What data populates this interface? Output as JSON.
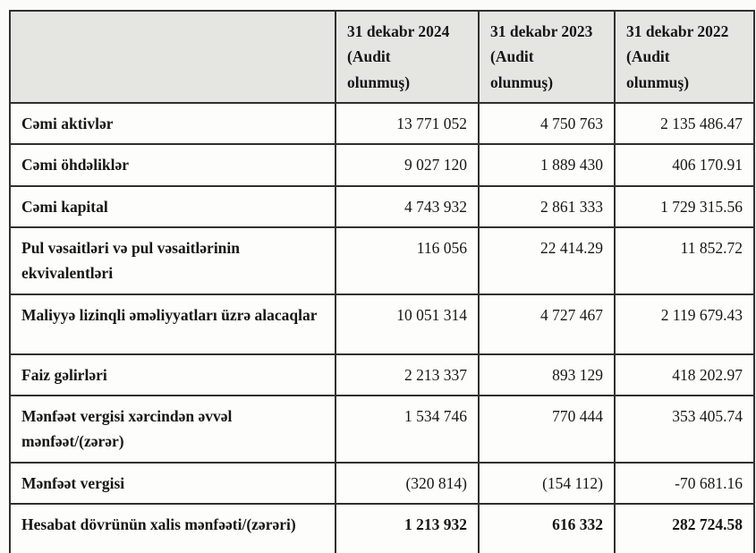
{
  "table": {
    "headers": [
      {
        "lines": [
          "31 dekabr 2024",
          "(Audit",
          "olunmuş)"
        ]
      },
      {
        "lines": [
          "31 dekabr 2023",
          "(Audit",
          "olunmuş)"
        ]
      },
      {
        "lines": [
          "31 dekabr 2022",
          "(Audit",
          "olunmuş)"
        ]
      }
    ],
    "rows": [
      {
        "label": "Cəmi aktivlər",
        "values": [
          "13 771 052",
          "4 750 763",
          "2 135 486.47"
        ]
      },
      {
        "label": "Cəmi öhdəliklər",
        "values": [
          "9 027 120",
          "1 889 430",
          "406 170.91"
        ]
      },
      {
        "label": "Cəmi kapital",
        "values": [
          "4 743 932",
          "2 861 333",
          "1 729 315.56"
        ]
      },
      {
        "label": "Pul vəsaitləri və pul vəsaitlərinin ekvivalentləri",
        "values": [
          "116 056",
          "22 414.29",
          "11 852.72"
        ]
      },
      {
        "label": "Maliyyə lizinqli əməliyyatları üzrə alacaqlar",
        "values": [
          "10 051 314",
          "4 727 467",
          "2 119 679.43"
        ]
      },
      {
        "label": "Faiz gəlirləri",
        "values": [
          "2 213 337",
          "893 129",
          "418 202.97"
        ]
      },
      {
        "label": "Mənfəət vergisi xərcindən əvvəl mənfəət/(zərər)",
        "values": [
          "1 534 746",
          "770 444",
          "353 405.74"
        ]
      },
      {
        "label": "Mənfəət vergisi",
        "values": [
          "(320 814)",
          "(154 112)",
          "-70 681.16"
        ]
      },
      {
        "label": "Hesabat dövrünün xalis mənfəəti/(zərəri)",
        "values": [
          "1 213 932",
          "616 332",
          "282 724.58"
        ]
      }
    ]
  },
  "colors": {
    "header_background": "#e5e5e2",
    "border": "#303030",
    "text": "#161616",
    "page_background": "#fbfbf9"
  }
}
